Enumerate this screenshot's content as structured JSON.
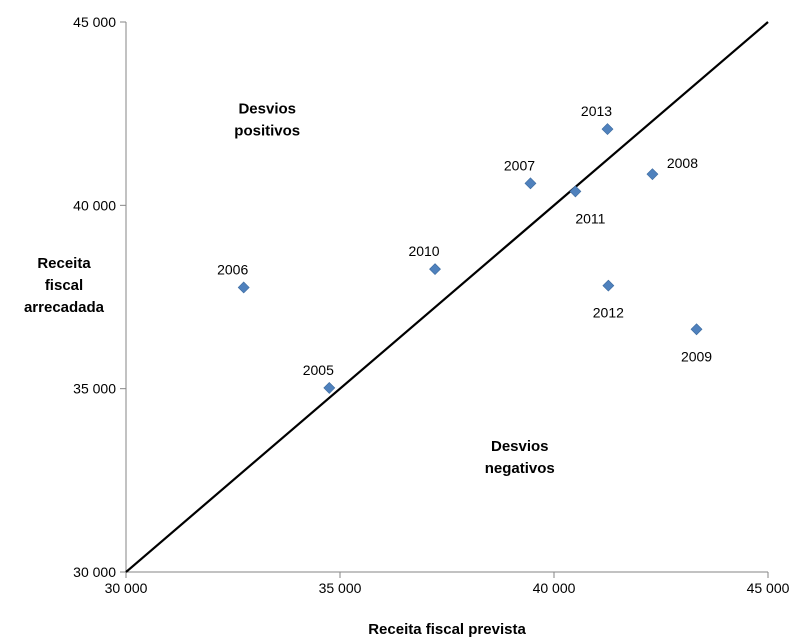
{
  "chart_data": {
    "type": "scatter",
    "title": "",
    "xlabel": "Receita fiscal prevista",
    "ylabel": [
      "Receita",
      "fiscal",
      "arrecadada"
    ],
    "xlim": [
      30000,
      45000
    ],
    "ylim": [
      30000,
      45000
    ],
    "x_ticks": [
      30000,
      35000,
      40000,
      45000
    ],
    "y_ticks": [
      30000,
      35000,
      40000,
      45000
    ],
    "x_tick_labels": [
      "30 000",
      "35 000",
      "40 000",
      "45 000"
    ],
    "y_tick_labels": [
      "30 000",
      "35 000",
      "40 000",
      "45 000"
    ],
    "grid": false,
    "points": [
      {
        "label": "2005",
        "x": 34750,
        "y": 35020,
        "label_pos": "above-left"
      },
      {
        "label": "2006",
        "x": 32750,
        "y": 37760,
        "label_pos": "above-left"
      },
      {
        "label": "2007",
        "x": 39450,
        "y": 40600,
        "label_pos": "above-left"
      },
      {
        "label": "2008",
        "x": 42300,
        "y": 40850,
        "label_pos": "above-right"
      },
      {
        "label": "2009",
        "x": 43330,
        "y": 36620,
        "label_pos": "below"
      },
      {
        "label": "2010",
        "x": 37220,
        "y": 38260,
        "label_pos": "above-left"
      },
      {
        "label": "2011",
        "x": 40500,
        "y": 40380,
        "label_pos": "below-right"
      },
      {
        "label": "2012",
        "x": 41270,
        "y": 37810,
        "label_pos": "below"
      },
      {
        "label": "2013",
        "x": 41250,
        "y": 42080,
        "label_pos": "above-left"
      }
    ],
    "reference_line": {
      "from": [
        30000,
        30000
      ],
      "to": [
        45000,
        45000
      ]
    },
    "annotations": [
      {
        "lines": [
          "Desvios",
          "positivos"
        ],
        "x": 33300,
        "y": 42500
      },
      {
        "lines": [
          "Desvios",
          "negativos"
        ],
        "x": 39200,
        "y": 33300
      }
    ],
    "marker_color": "#4f81bd",
    "line_color": "#000000",
    "axis_color": "#868686"
  }
}
